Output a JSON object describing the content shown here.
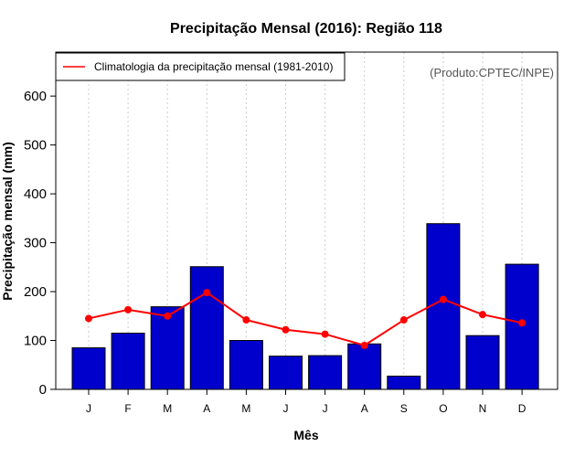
{
  "chart_data": {
    "type": "bar",
    "title": "Precipitação Mensal (2016): Região 118",
    "xlabel": "Mês",
    "ylabel": "Precipitação mensal (mm)",
    "categories": [
      "J",
      "F",
      "M",
      "A",
      "M",
      "J",
      "J",
      "A",
      "S",
      "O",
      "N",
      "D"
    ],
    "series": [
      {
        "name": "Precipitação mensal (2016)",
        "kind": "bar",
        "color": "#0000cc",
        "values": [
          85,
          115,
          169,
          251,
          100,
          68,
          69,
          93,
          27,
          339,
          110,
          256
        ]
      },
      {
        "name": "Climatologia da precipitação mensal (1981-2010)",
        "kind": "line",
        "color": "#ff0000",
        "values": [
          145,
          163,
          150,
          198,
          142,
          122,
          113,
          90,
          142,
          184,
          153,
          136
        ]
      }
    ],
    "ylim": [
      0,
      690
    ],
    "yticks": [
      0,
      100,
      200,
      300,
      400,
      500,
      600
    ],
    "grid": "vertical dotted",
    "legend": {
      "label": "Climatologia da precipitação mensal (1981-2010)",
      "position": "top-left"
    },
    "credit": "(Produto:CPTEC/INPE)"
  }
}
